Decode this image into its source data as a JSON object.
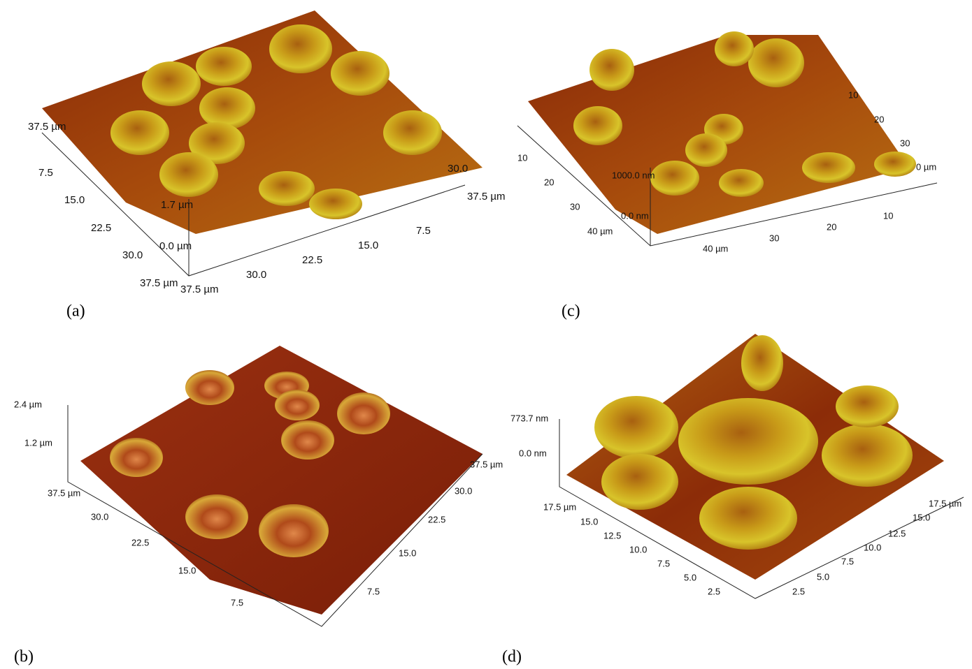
{
  "panels": [
    {
      "label": "(a)",
      "axis_labels": [
        "37.5 µm",
        "7.5",
        "15.0",
        "22.5",
        "30.0",
        "37.5 µm",
        "1.7 µm",
        "0.0 µm",
        "37.5 µm",
        "30.0",
        "22.5",
        "15.0",
        "7.5",
        "30.0",
        "37.5 µm"
      ]
    },
    {
      "label": "(c)",
      "axis_labels": [
        "10",
        "20",
        "30",
        "40 µm",
        "1000.0 nm",
        "0.0 nm",
        "40 µm",
        "30",
        "20",
        "10",
        "10",
        "20",
        "30",
        "0 µm"
      ]
    },
    {
      "label": "(b)",
      "axis_labels": [
        "2.4 µm",
        "1.2 µm",
        "37.5 µm",
        "30.0",
        "22.5",
        "15.0",
        "7.5",
        "37.5 µm",
        "30.0",
        "22.5",
        "15.0",
        "7.5"
      ]
    },
    {
      "label": "(d)",
      "axis_labels": [
        "773.7 nm",
        "0.0 nm",
        "17.5 µm",
        "15.0",
        "12.5",
        "10.0",
        "7.5",
        "5.0",
        "2.5",
        "17.5 µm",
        "15.0",
        "12.5",
        "10.0",
        "7.5",
        "5.0",
        "2.5"
      ]
    }
  ]
}
